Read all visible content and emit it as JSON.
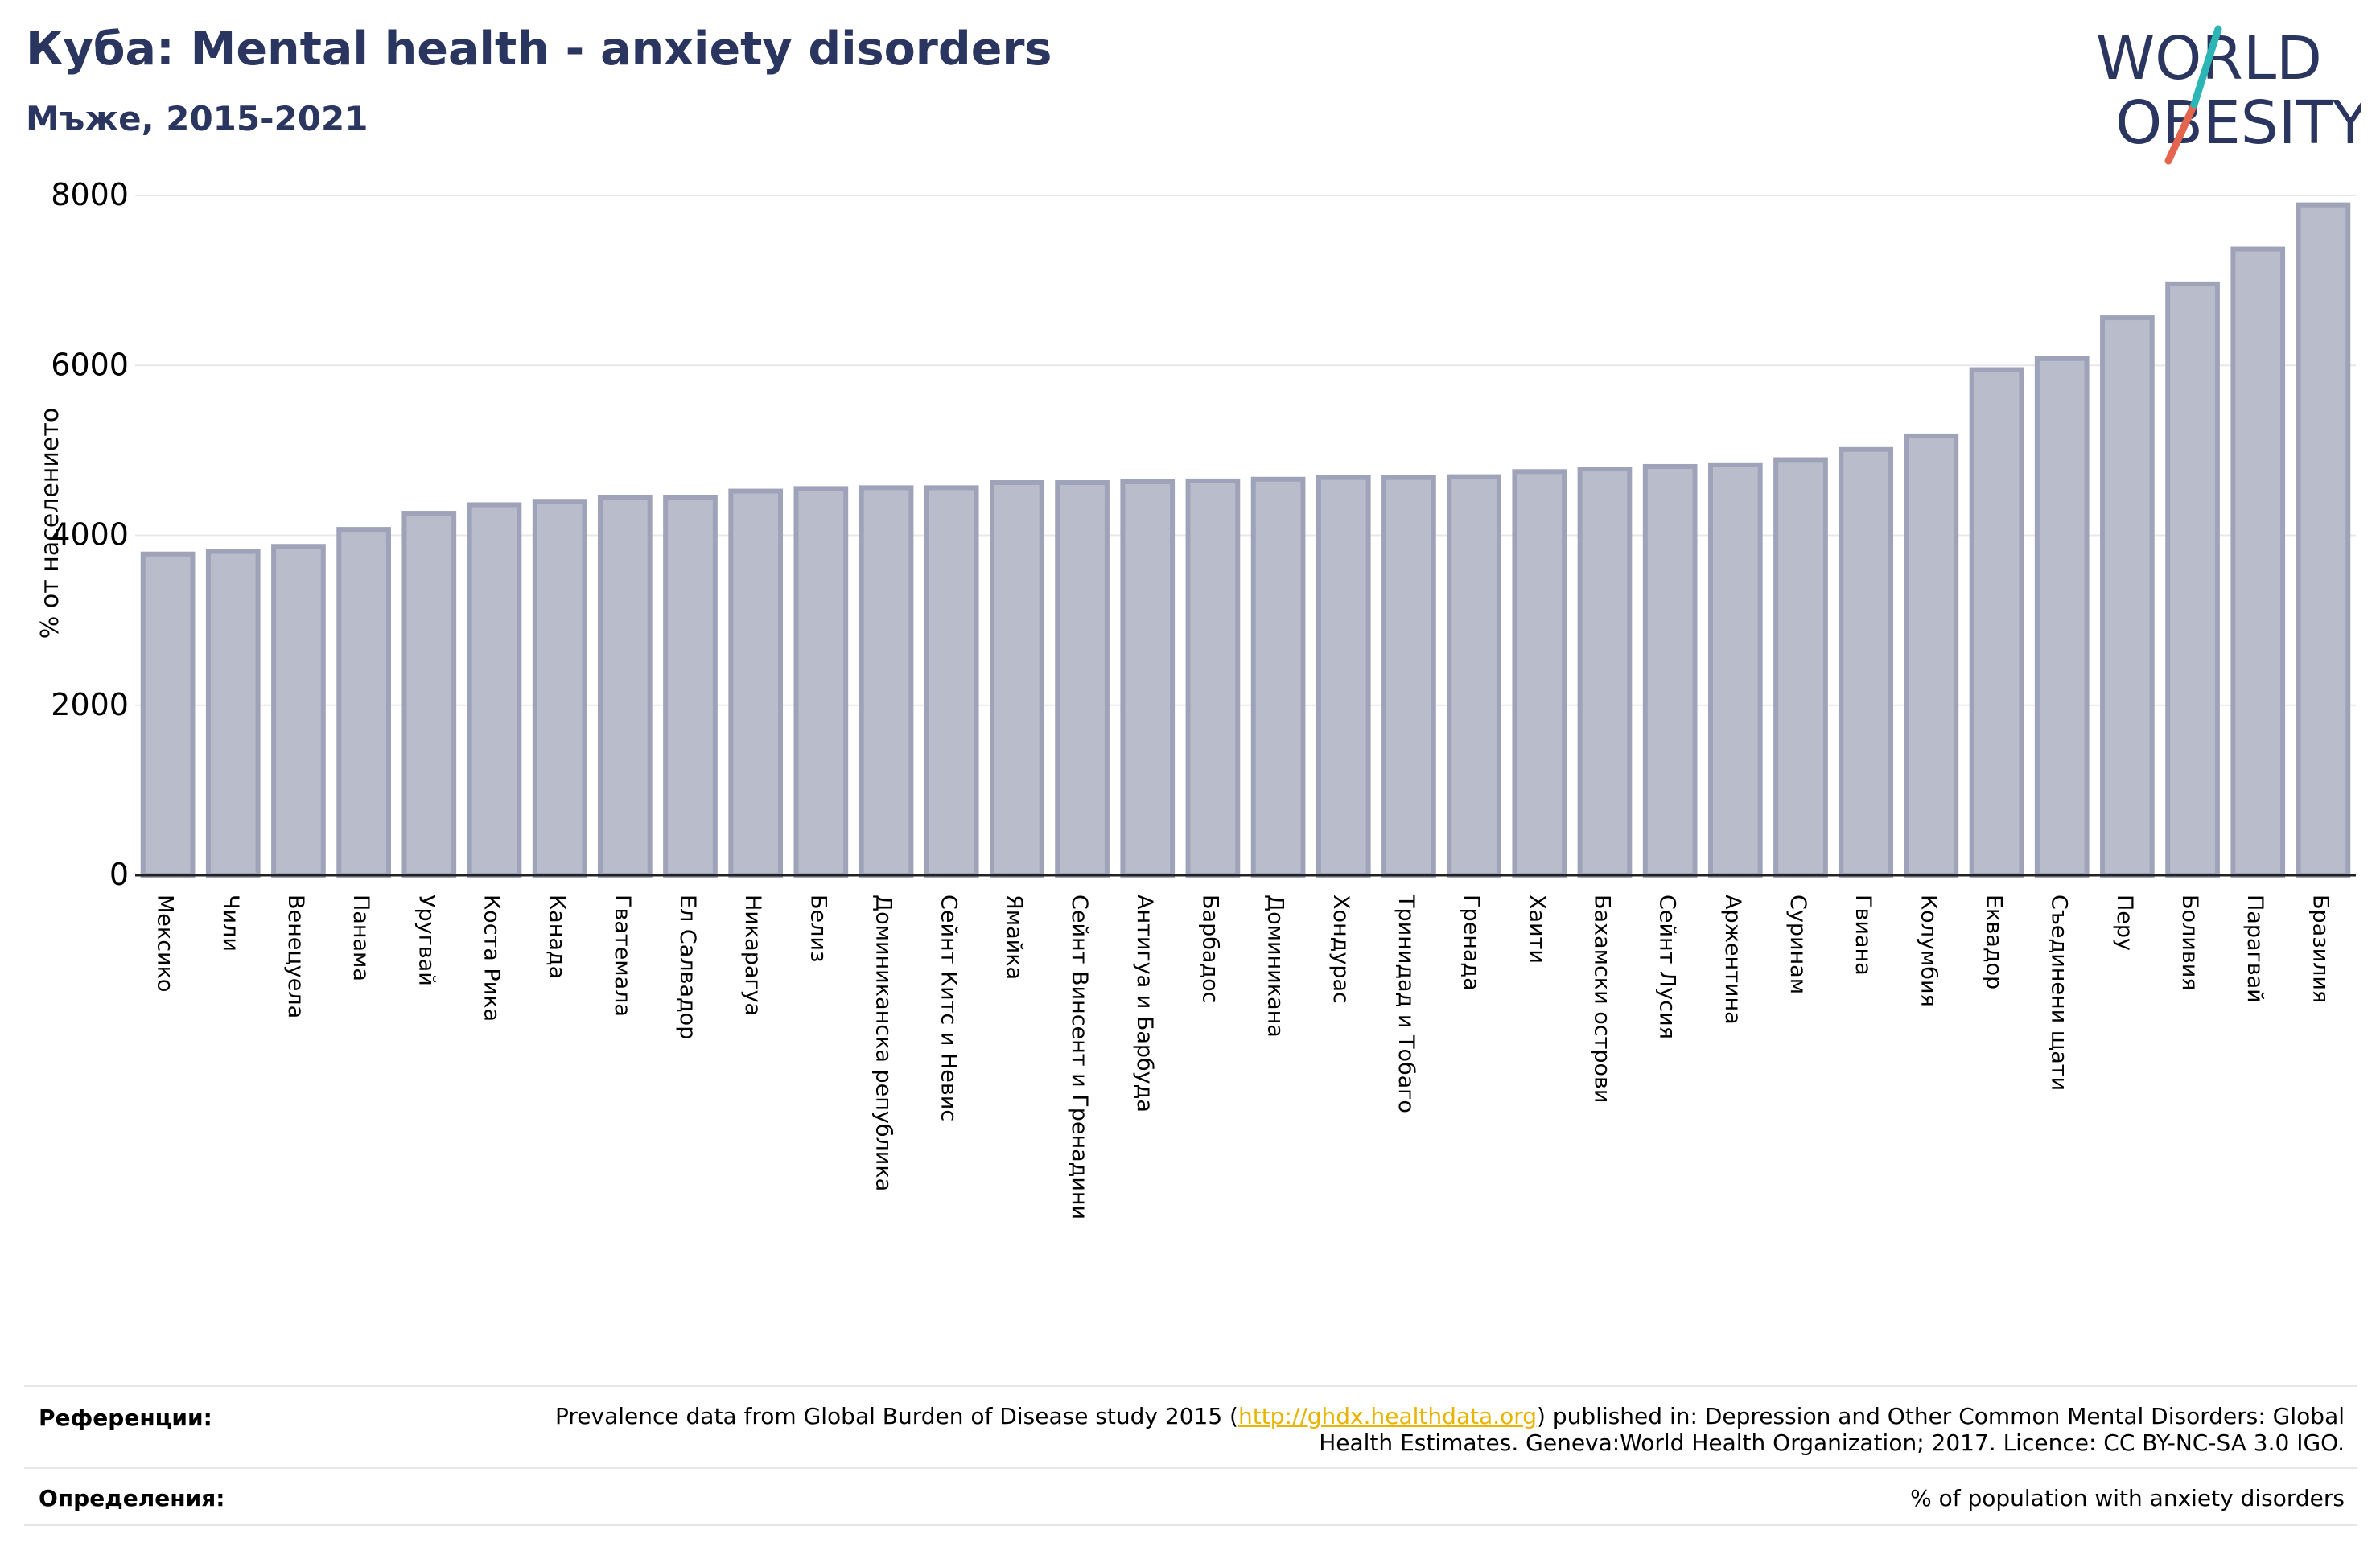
{
  "header": {
    "title": "Куба: Mental health - anxiety disorders",
    "subtitle": "Мъже, 2015-2021"
  },
  "logo": {
    "text_line1": "WORLD",
    "text_line2": "OBESITY",
    "color_text": "#2b3660",
    "color_slash_teal": "#2cb5b5",
    "color_slash_coral": "#e5644e"
  },
  "footer": {
    "references_label": "Референции:",
    "references_text_pre": "Prevalence data from Global Burden of Disease study 2015 (",
    "references_link": "http://ghdx.healthdata.org",
    "references_text_post": ") published in: Depression and Other Common Mental Disorders: Global Health Estimates. Geneva:World Health Organization; 2017. Licence: CC BY-NC-SA 3.0 IGO.",
    "definitions_label": "Определения:",
    "definitions_text": "% of population with anxiety disorders"
  },
  "chart_data": {
    "type": "bar",
    "ylabel": "% от населението",
    "ylim": [
      0,
      8000
    ],
    "yticks": [
      0,
      2000,
      4000,
      6000,
      8000
    ],
    "grid": true,
    "bar_color": "#b8bccb",
    "bar_edge_color": "#9ea3b9",
    "categories": [
      "Мексико",
      "Чили",
      "Венецуела",
      "Панама",
      "Уругвай",
      "Коста Рика",
      "Канада",
      "Гватемала",
      "Ел Салвадор",
      "Никарагуа",
      "Белиз",
      "Доминиканска република",
      "Сейнт Китс и Невис",
      "Ямайка",
      "Сейнт Винсент и Гренадини",
      "Антигуа и Барбуда",
      "Барбадос",
      "Доминикана",
      "Хондурас",
      "Тринидад и Тобаго",
      "Гренада",
      "Хаити",
      "Бахамски острови",
      "Сейнт Лусия",
      "Аржентина",
      "Суринам",
      "Гвиана",
      "Колумбия",
      "Еквадор",
      "Съединени щати",
      "Перу",
      "Боливия",
      "Парагвай",
      "Бразилия"
    ],
    "values": [
      3780,
      3810,
      3870,
      4070,
      4260,
      4360,
      4400,
      4450,
      4450,
      4520,
      4550,
      4560,
      4560,
      4620,
      4620,
      4630,
      4640,
      4660,
      4680,
      4680,
      4690,
      4750,
      4780,
      4810,
      4830,
      4890,
      5010,
      5170,
      5950,
      6080,
      6560,
      6960,
      7370,
      7890
    ]
  }
}
